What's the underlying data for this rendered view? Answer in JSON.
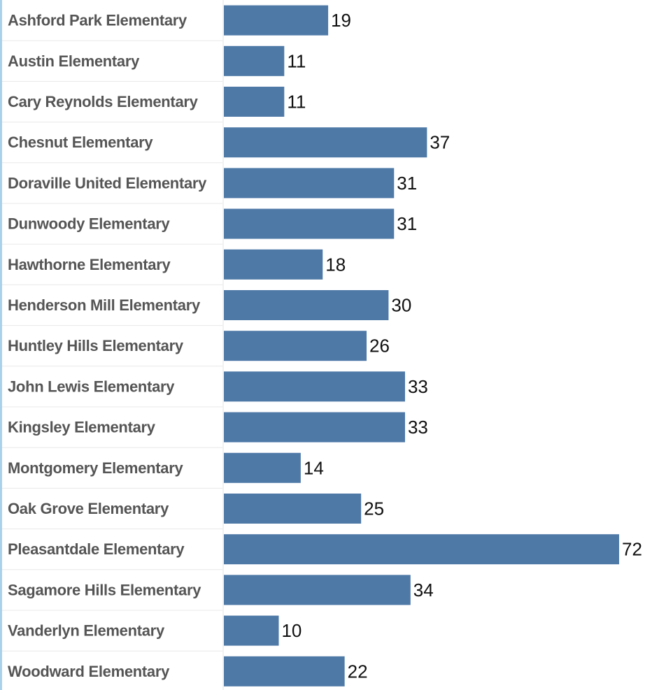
{
  "chart_data": {
    "type": "bar",
    "orientation": "horizontal",
    "categories": [
      "Ashford Park Elementary",
      "Austin Elementary",
      "Cary Reynolds Elementary",
      "Chesnut Elementary",
      "Doraville United Elementary",
      "Dunwoody Elementary",
      "Hawthorne Elementary",
      "Henderson Mill Elementary",
      "Huntley Hills Elementary",
      "John Lewis Elementary",
      "Kingsley Elementary",
      "Montgomery Elementary",
      "Oak Grove Elementary",
      "Pleasantdale Elementary",
      "Sagamore Hills Elementary",
      "Vanderlyn Elementary",
      "Woodward Elementary"
    ],
    "values": [
      19,
      11,
      11,
      37,
      31,
      31,
      18,
      30,
      26,
      33,
      33,
      14,
      25,
      72,
      34,
      10,
      22
    ],
    "xlim": [
      0,
      72
    ],
    "bar_color": "#4e79a7",
    "grid": false,
    "data_labels": true
  }
}
